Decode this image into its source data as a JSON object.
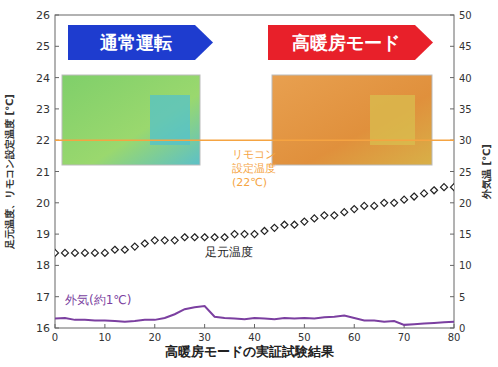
{
  "chart_data": {
    "type": "line",
    "title": "高暖房モードの実証試験結果",
    "y_label": "足元温度、リモコン設定温度 [℃]",
    "y2_label": "外気温 [℃]",
    "x": [
      0,
      2,
      4,
      6,
      8,
      10,
      12,
      14,
      16,
      18,
      20,
      22,
      24,
      26,
      28,
      30,
      32,
      34,
      36,
      38,
      40,
      42,
      44,
      46,
      48,
      50,
      52,
      54,
      56,
      58,
      60,
      62,
      64,
      66,
      68,
      70,
      72,
      74,
      76,
      78,
      80
    ],
    "xlim": [
      0,
      80
    ],
    "xticks": [
      0,
      10,
      20,
      30,
      40,
      50,
      60,
      70,
      80
    ],
    "ylim": [
      16,
      26
    ],
    "yticks": [
      16,
      17,
      18,
      19,
      20,
      21,
      22,
      23,
      24,
      25,
      26
    ],
    "y2lim": [
      0,
      50
    ],
    "y2ticks": [
      0,
      5,
      10,
      15,
      20,
      25,
      30,
      35,
      40,
      45,
      50
    ],
    "grid": false,
    "series": [
      {
        "name": "足元温度",
        "color": "#222222",
        "marker": "diamond",
        "line_style": "none",
        "values": [
          18.4,
          18.4,
          18.4,
          18.4,
          18.4,
          18.4,
          18.5,
          18.5,
          18.6,
          18.7,
          18.8,
          18.8,
          18.8,
          18.9,
          18.9,
          18.9,
          18.9,
          18.9,
          19.0,
          19.0,
          19.0,
          19.1,
          19.2,
          19.3,
          19.3,
          19.4,
          19.5,
          19.6,
          19.6,
          19.7,
          19.8,
          19.9,
          19.9,
          20.0,
          20.0,
          20.1,
          20.2,
          20.3,
          20.4,
          20.5,
          20.5
        ]
      },
      {
        "name": "外気(約1℃)",
        "color": "#7b3fa0",
        "axis": "y2",
        "marker": "none",
        "line_style": "solid",
        "values": [
          1.5,
          1.6,
          1.3,
          1.3,
          1.2,
          1.2,
          1.1,
          1.0,
          1.1,
          1.3,
          1.3,
          1.6,
          2.2,
          3.0,
          3.3,
          3.5,
          1.8,
          1.6,
          1.5,
          1.4,
          1.6,
          1.5,
          1.4,
          1.6,
          1.5,
          1.6,
          1.5,
          1.7,
          1.8,
          2.0,
          1.6,
          1.2,
          1.2,
          1.0,
          1.1,
          0.5,
          0.6,
          0.7,
          0.8,
          0.9,
          1.0
        ]
      }
    ],
    "reference_line": {
      "value": 22,
      "color": "#f5a442",
      "label_lines": [
        "リモコン",
        "設定温度",
        "(22℃)"
      ]
    },
    "phases": [
      {
        "label": "通常運転",
        "color": "#1e3ccf"
      },
      {
        "label": "高暖房モード",
        "color": "#e8202a"
      }
    ]
  }
}
